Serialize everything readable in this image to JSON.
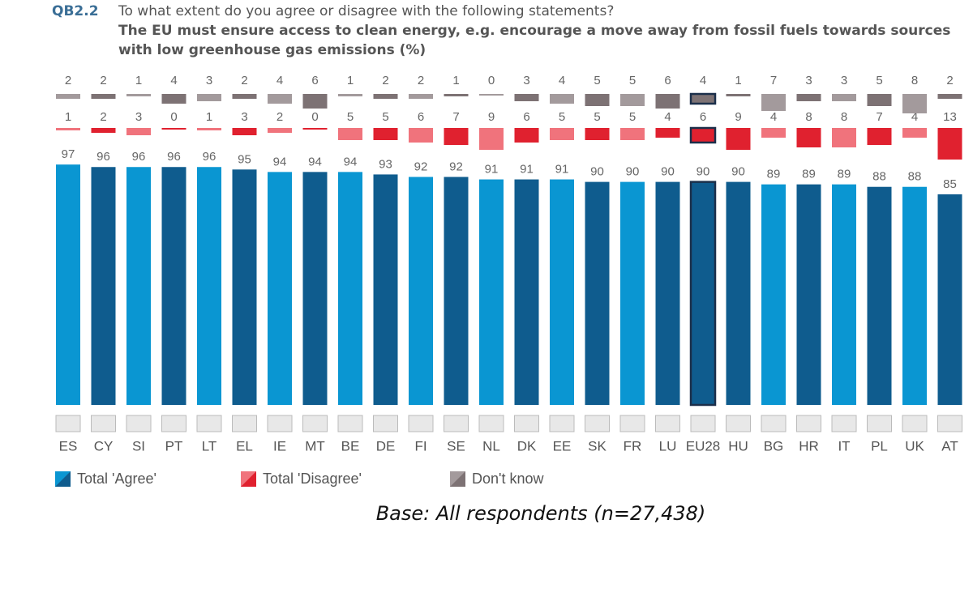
{
  "chart_data": {
    "type": "bar",
    "question_code": "QB2.2",
    "title": "To what extent do you agree or disagree with the following statements?",
    "subtitle": "The EU must ensure access to clean energy, e.g. encourage a move away from fossil fuels towards sources with low greenhouse gas emissions (%)",
    "categories": [
      "ES",
      "CY",
      "SI",
      "PT",
      "LT",
      "EL",
      "IE",
      "MT",
      "BE",
      "DE",
      "FI",
      "SE",
      "NL",
      "DK",
      "EE",
      "SK",
      "FR",
      "LU",
      "EU28",
      "HU",
      "BG",
      "HR",
      "IT",
      "PL",
      "UK",
      "AT"
    ],
    "highlight": 18,
    "series": [
      {
        "name": "Total 'Agree'",
        "colors": [
          "#0a96d2",
          "#0f5c8e"
        ],
        "values": [
          97,
          96,
          96,
          96,
          96,
          95,
          94,
          94,
          94,
          93,
          92,
          92,
          91,
          91,
          91,
          90,
          90,
          90,
          90,
          90,
          89,
          89,
          89,
          88,
          88,
          85
        ]
      },
      {
        "name": "Total 'Disagree'",
        "colors": [
          "#f0737c",
          "#e0212f"
        ],
        "values": [
          1,
          2,
          3,
          0,
          1,
          3,
          2,
          0,
          5,
          5,
          6,
          7,
          9,
          6,
          5,
          5,
          5,
          4,
          6,
          9,
          4,
          8,
          8,
          7,
          4,
          13
        ]
      },
      {
        "name": "Don't know",
        "colors": [
          "#a39a9c",
          "#7d7274"
        ],
        "values": [
          2,
          2,
          1,
          4,
          3,
          2,
          4,
          6,
          1,
          2,
          2,
          1,
          0,
          3,
          4,
          5,
          5,
          6,
          4,
          1,
          7,
          3,
          3,
          5,
          8,
          2
        ]
      }
    ],
    "note": "Base: All respondents (n=27,438)"
  }
}
